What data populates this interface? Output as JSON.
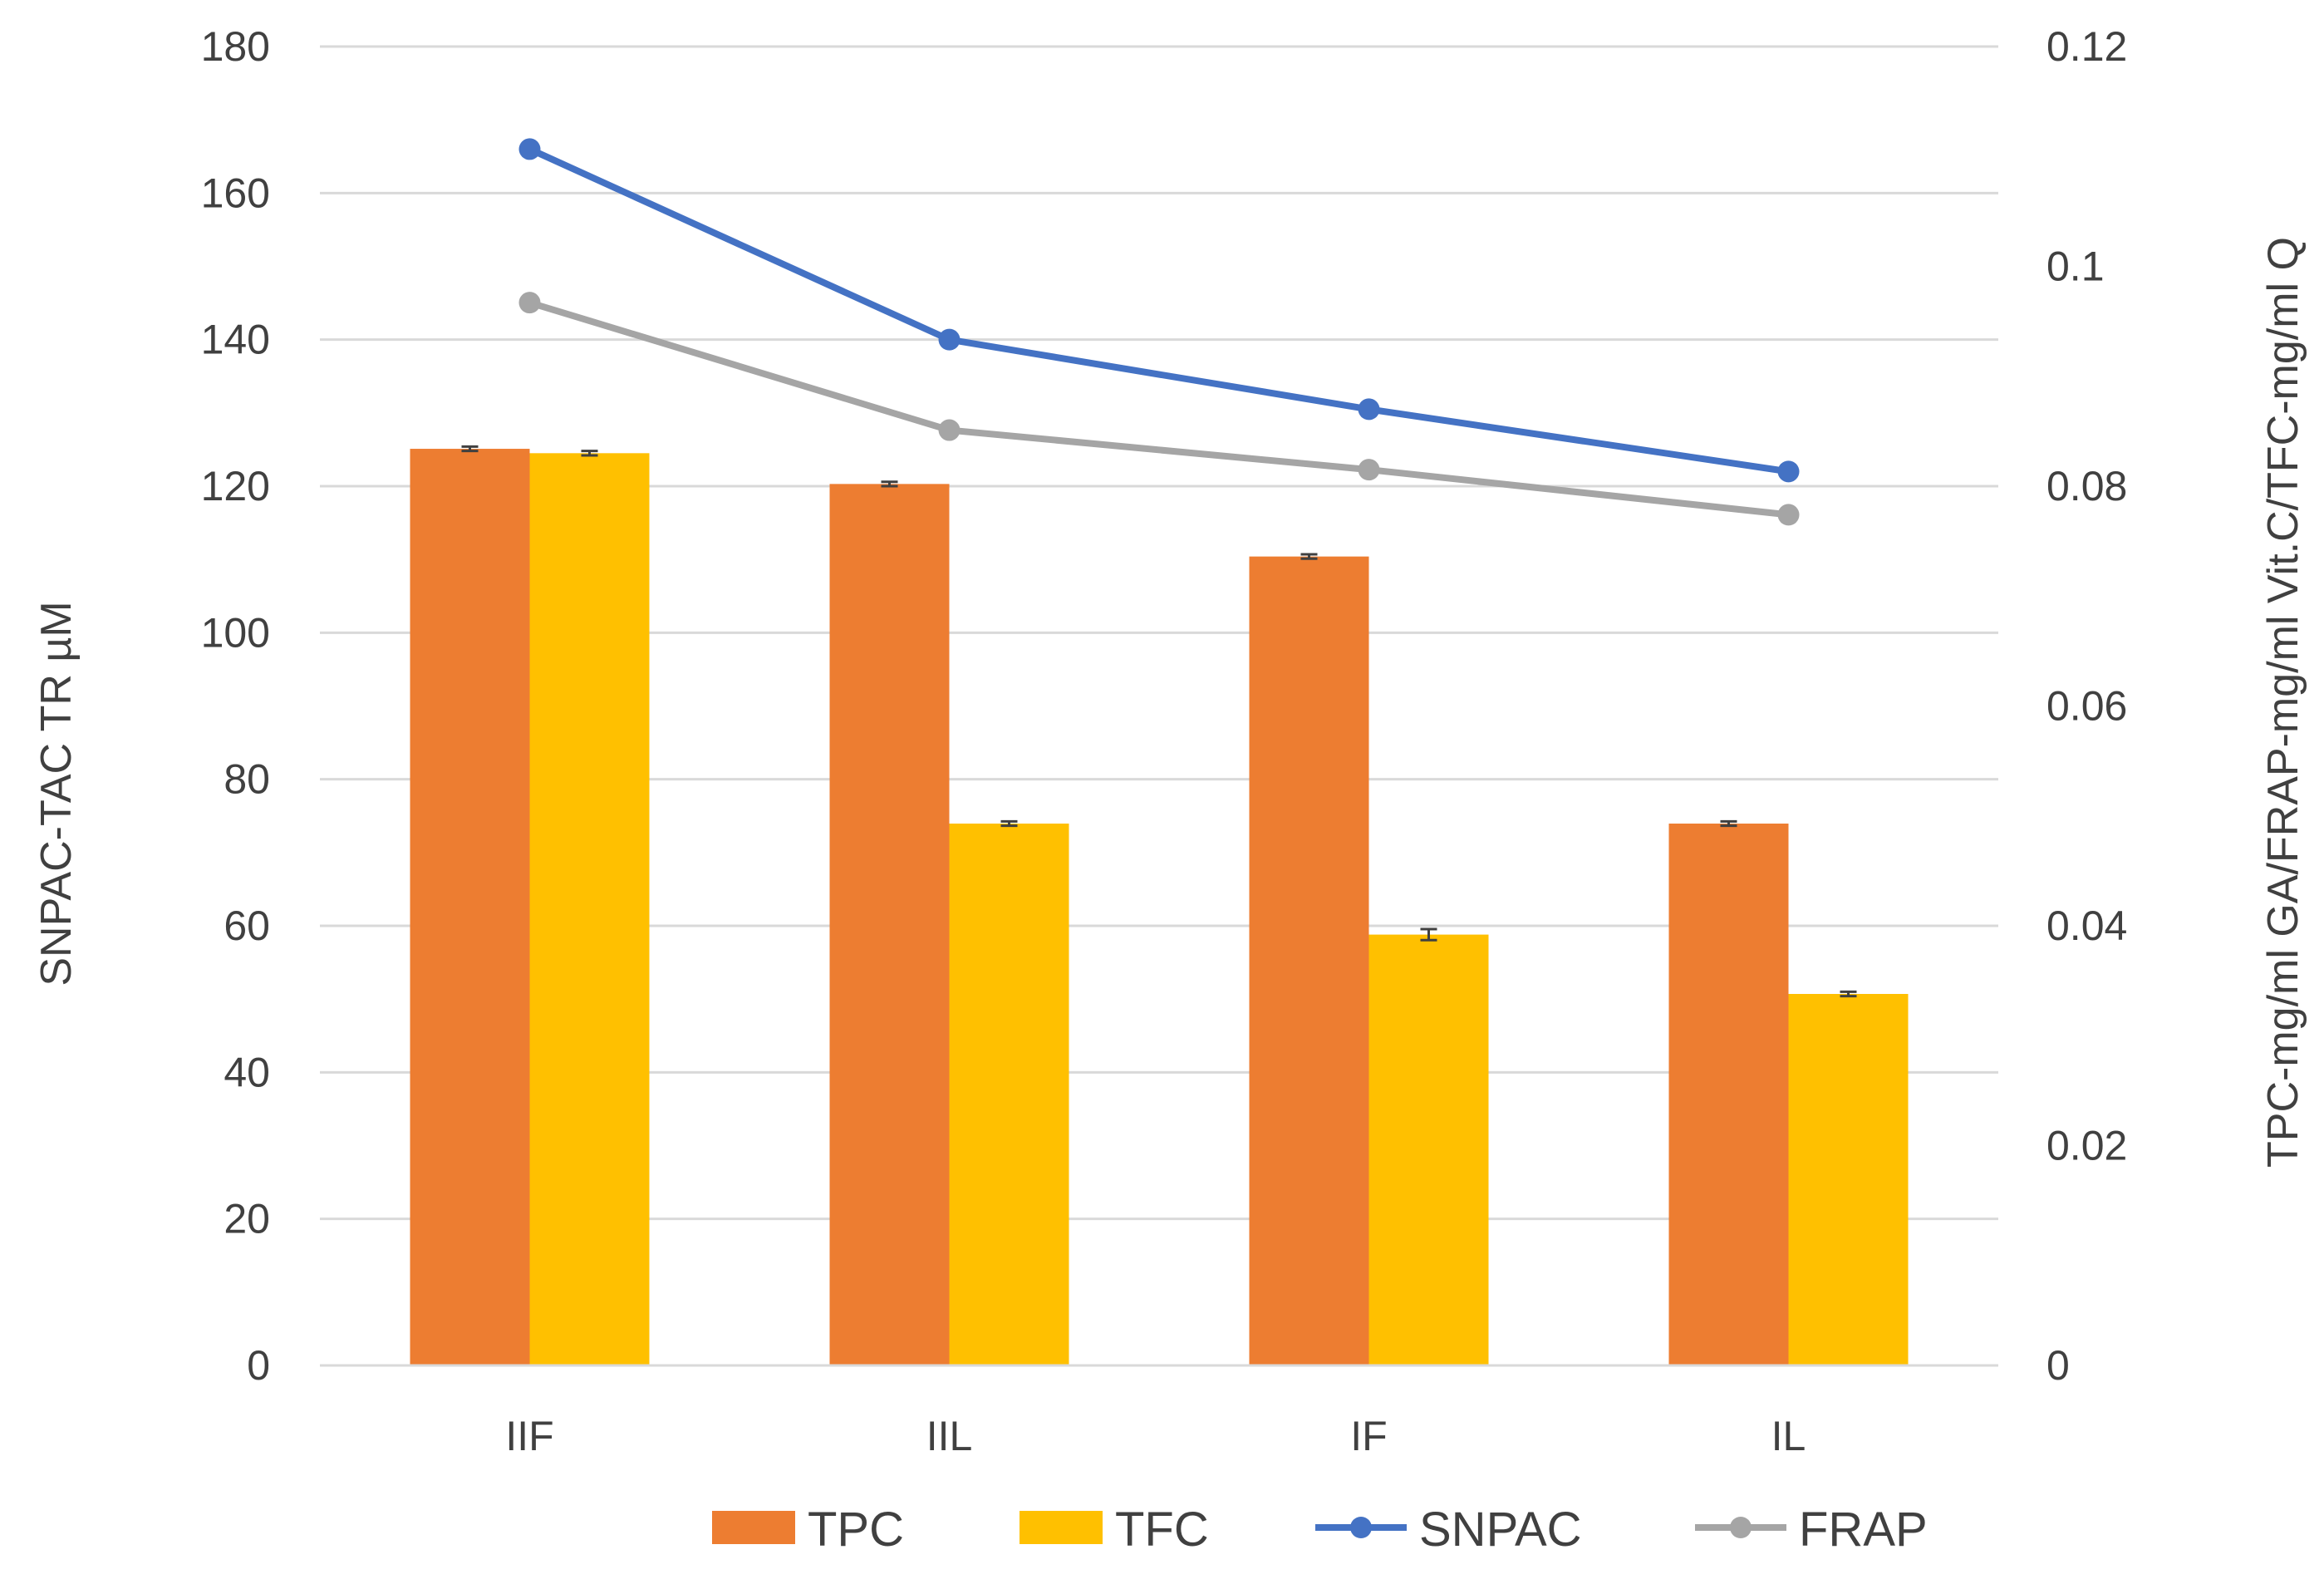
{
  "chart_data": {
    "type": "bar",
    "title": "",
    "categories": [
      "IIF",
      "IIL",
      "IF",
      "IL"
    ],
    "bar_series": [
      {
        "name": "TPC",
        "color": "#ED7D31",
        "axis": "right",
        "values": [
          0.0834,
          0.0802,
          0.0736,
          0.0493
        ],
        "errors": [
          0.0002,
          0.0002,
          0.0002,
          0.0002
        ]
      },
      {
        "name": "TFC",
        "color": "#FFC000",
        "axis": "right",
        "values": [
          0.083,
          0.0493,
          0.0392,
          0.0338
        ],
        "errors": [
          0.0002,
          0.0002,
          0.0005,
          0.0002
        ]
      }
    ],
    "line_series": [
      {
        "name": "SNPAC",
        "color": "#4472C4",
        "axis": "left",
        "values": [
          166,
          140,
          130.5,
          122
        ]
      },
      {
        "name": "FRAP",
        "color": "#A5A5A5",
        "axis": "right",
        "values": [
          0.0967,
          0.0851,
          0.0815,
          0.0774
        ]
      }
    ],
    "left_axis": {
      "label": "SNPAC-TAC TR µM",
      "ylim": [
        0,
        180
      ],
      "ticks": [
        "0",
        "20",
        "40",
        "60",
        "80",
        "100",
        "120",
        "140",
        "160",
        "180"
      ]
    },
    "right_axis": {
      "label": "TPC-mg/ml GA/FRAP-mg/ml Vit.C/TFC-mg/ml Q",
      "ylim": [
        0,
        0.12
      ],
      "ticks": [
        "0",
        "0.02",
        "0.04",
        "0.06",
        "0.08",
        "0.1",
        "0.12"
      ]
    },
    "xlabel": "",
    "grid": true,
    "legend": {
      "position": "bottom",
      "items": [
        {
          "name": "TPC",
          "kind": "bar",
          "color": "#ED7D31"
        },
        {
          "name": "TFC",
          "kind": "bar",
          "color": "#FFC000"
        },
        {
          "name": "SNPAC",
          "kind": "line",
          "color": "#4472C4"
        },
        {
          "name": "FRAP",
          "kind": "line",
          "color": "#A5A5A5"
        }
      ]
    }
  }
}
